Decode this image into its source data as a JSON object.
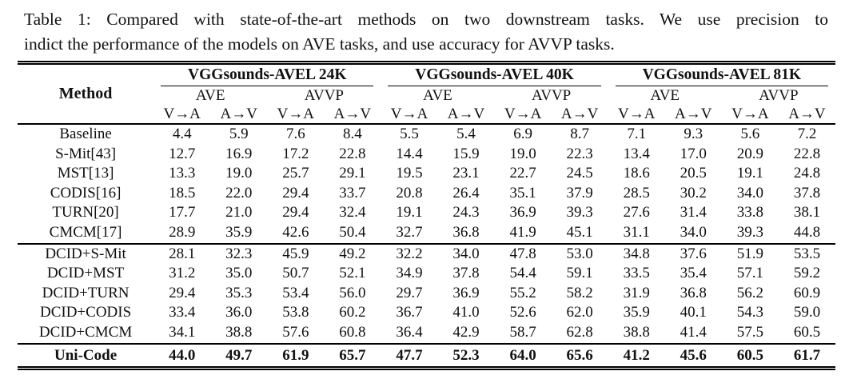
{
  "page": {
    "background_color": "#ffffff",
    "text_color": "#111111",
    "rule_color": "#000000"
  },
  "caption": {
    "line1": "Table 1: Compared with state-of-the-art methods on two downstream tasks. We use precision to",
    "line2": "indict the performance of the models on AVE tasks, and use accuracy for AVVP tasks."
  },
  "table": {
    "method_header": "Method",
    "groups": [
      {
        "label": "VGGsounds-AVEL 24K",
        "subgroups": [
          "AVE",
          "AVVP"
        ]
      },
      {
        "label": "VGGsounds-AVEL 40K",
        "subgroups": [
          "AVE",
          "AVVP"
        ]
      },
      {
        "label": "VGGsounds-AVEL 81K",
        "subgroups": [
          "AVE",
          "AVVP"
        ]
      }
    ],
    "direction_labels": [
      "V→A",
      "A→V"
    ],
    "sections": [
      {
        "name": "prior-methods",
        "bold": false,
        "rows": [
          {
            "method": "Baseline",
            "values": [
              "4.4",
              "5.9",
              "7.6",
              "8.4",
              "5.5",
              "5.4",
              "6.9",
              "8.7",
              "7.1",
              "9.3",
              "5.6",
              "7.2"
            ]
          },
          {
            "method": "S-Mit[43]",
            "values": [
              "12.7",
              "16.9",
              "17.2",
              "22.8",
              "14.4",
              "15.9",
              "19.0",
              "22.3",
              "13.4",
              "17.0",
              "20.9",
              "22.8"
            ]
          },
          {
            "method": "MST[13]",
            "values": [
              "13.3",
              "19.0",
              "25.7",
              "29.1",
              "19.5",
              "23.1",
              "22.7",
              "24.5",
              "18.6",
              "20.5",
              "19.1",
              "24.8"
            ]
          },
          {
            "method": "CODIS[16]",
            "values": [
              "18.5",
              "22.0",
              "29.4",
              "33.7",
              "20.8",
              "26.4",
              "35.1",
              "37.9",
              "28.5",
              "30.2",
              "34.0",
              "37.8"
            ]
          },
          {
            "method": "TURN[20]",
            "values": [
              "17.7",
              "21.0",
              "29.4",
              "32.4",
              "19.1",
              "24.3",
              "36.9",
              "39.3",
              "27.6",
              "31.4",
              "33.8",
              "38.1"
            ]
          },
          {
            "method": "CMCM[17]",
            "values": [
              "28.9",
              "35.9",
              "42.6",
              "50.4",
              "32.7",
              "36.8",
              "41.9",
              "45.1",
              "31.1",
              "34.0",
              "39.3",
              "44.8"
            ]
          }
        ]
      },
      {
        "name": "dcid-methods",
        "bold": false,
        "rows": [
          {
            "method": "DCID+S-Mit",
            "values": [
              "28.1",
              "32.3",
              "45.9",
              "49.2",
              "32.2",
              "34.0",
              "47.8",
              "53.0",
              "34.8",
              "37.6",
              "51.9",
              "53.5"
            ]
          },
          {
            "method": "DCID+MST",
            "values": [
              "31.2",
              "35.0",
              "50.7",
              "52.1",
              "34.9",
              "37.8",
              "54.4",
              "59.1",
              "33.5",
              "35.4",
              "57.1",
              "59.2"
            ]
          },
          {
            "method": "DCID+TURN",
            "values": [
              "29.4",
              "35.3",
              "53.4",
              "56.0",
              "29.7",
              "36.9",
              "55.2",
              "58.2",
              "31.9",
              "36.8",
              "56.2",
              "60.9"
            ]
          },
          {
            "method": "DCID+CODIS",
            "values": [
              "33.4",
              "36.0",
              "53.8",
              "60.2",
              "36.7",
              "41.0",
              "52.6",
              "62.0",
              "35.9",
              "40.1",
              "54.3",
              "59.0"
            ]
          },
          {
            "method": "DCID+CMCM",
            "values": [
              "34.1",
              "38.8",
              "57.6",
              "60.8",
              "36.4",
              "42.9",
              "58.7",
              "62.8",
              "38.8",
              "41.4",
              "57.5",
              "60.5"
            ]
          }
        ]
      },
      {
        "name": "ours",
        "bold": true,
        "rows": [
          {
            "method": "Uni-Code",
            "values": [
              "44.0",
              "49.7",
              "61.9",
              "65.7",
              "47.7",
              "52.3",
              "64.0",
              "65.6",
              "41.2",
              "45.6",
              "60.5",
              "61.7"
            ]
          }
        ]
      }
    ]
  }
}
